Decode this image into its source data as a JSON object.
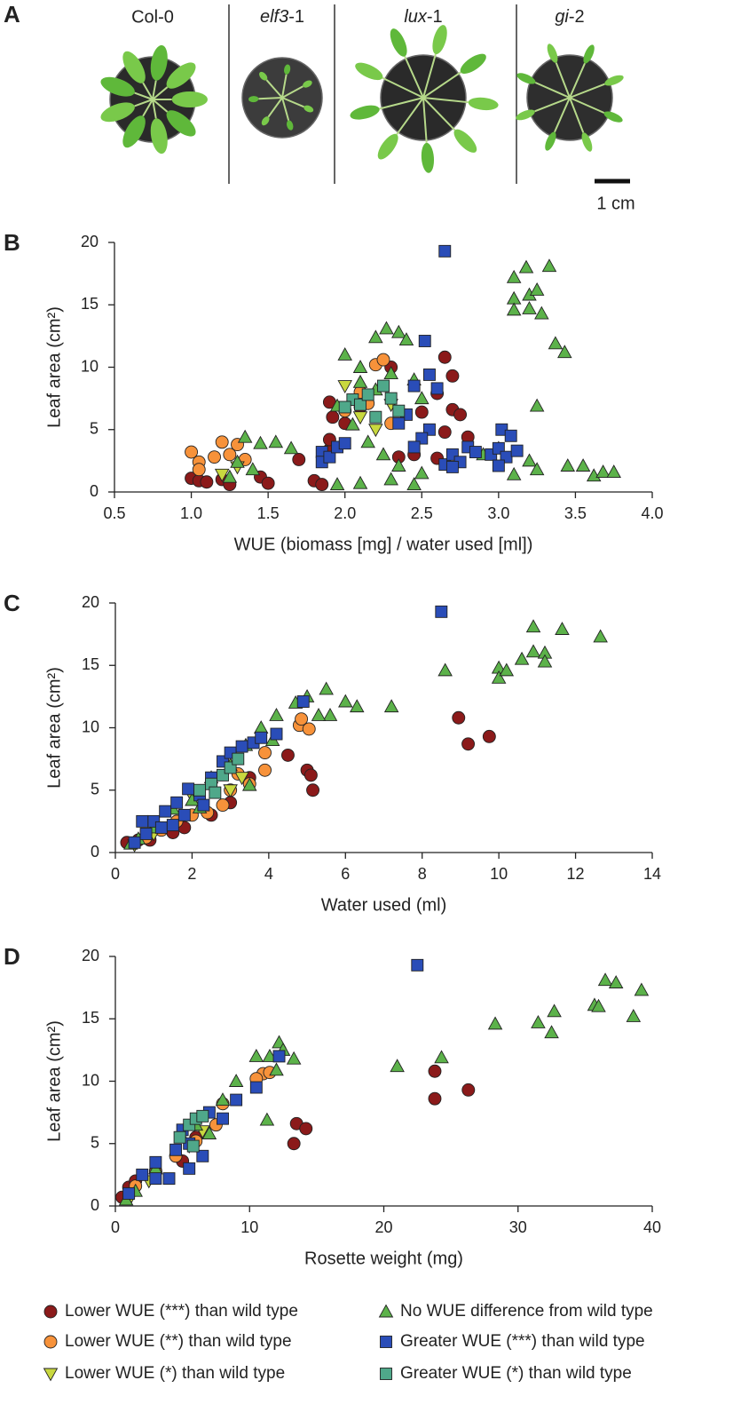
{
  "panel_a": {
    "letter": "A",
    "genotypes": [
      "Col-0",
      "elf3-1",
      "lux-1",
      "gi-2"
    ],
    "scale_bar": "1 cm"
  },
  "legend": [
    {
      "name": "Lower WUE (***) than wild type",
      "color": "#8b1a1a",
      "marker": "circle"
    },
    {
      "name": "Lower WUE (**) than wild type",
      "color": "#f7923a",
      "marker": "circle"
    },
    {
      "name": "Lower WUE (*) than wild type",
      "color": "#c9d83f",
      "marker": "triangle-down"
    },
    {
      "name": "No WUE difference from wild type",
      "color": "#5cb24a",
      "marker": "triangle-up"
    },
    {
      "name": "Greater WUE (***) than wild type",
      "color": "#2a4db8",
      "marker": "square"
    },
    {
      "name": "Greater WUE (*) than wild type",
      "color": "#4fa88a",
      "marker": "square"
    }
  ],
  "chart_data": [
    {
      "type": "scatter",
      "panel": "B",
      "xlabel": "WUE (biomass [mg] / water used [ml])",
      "ylabel": "Leaf area (cm²)",
      "xlim": [
        0.5,
        4.0
      ],
      "ylim": [
        0,
        20
      ],
      "xticks": [
        0.5,
        {
          "value": 1,
          "label": "1.0"
        },
        1.5,
        {
          "value": 2,
          "label": "2.0"
        },
        2.5,
        {
          "value": 3,
          "label": "3.0"
        },
        3.5,
        {
          "value": 4,
          "label": "4.0"
        }
      ],
      "yticks": [
        0,
        5,
        10,
        15,
        20
      ],
      "series": [
        {
          "x": [
            1.0,
            1.05,
            1.1,
            1.2,
            1.25,
            1.45,
            1.5,
            1.7,
            1.8,
            1.85,
            1.9,
            1.92,
            1.9,
            1.9,
            2.3,
            2.35,
            2.5,
            2.6,
            2.65,
            2.7,
            2.7,
            2.75,
            2.6,
            2.65,
            2.8,
            2.45,
            2.0,
            2.1
          ],
          "values": [
            1.1,
            0.9,
            0.8,
            1.0,
            0.6,
            1.2,
            0.7,
            2.6,
            0.9,
            0.6,
            7.2,
            6.0,
            3.4,
            4.2,
            10.0,
            2.8,
            6.4,
            7.9,
            10.8,
            9.3,
            6.6,
            6.2,
            2.7,
            4.8,
            4.4,
            3.0,
            5.5,
            6.8
          ]
        },
        {
          "x": [
            1.0,
            1.05,
            1.05,
            1.15,
            1.2,
            1.25,
            1.3,
            1.35,
            2.2,
            2.25,
            2.1,
            2.15,
            2.0,
            2.3
          ],
          "values": [
            3.2,
            2.4,
            1.8,
            2.8,
            4.0,
            3.0,
            3.8,
            2.6,
            10.2,
            10.6,
            8.0,
            7.1,
            6.5,
            5.5
          ]
        },
        {
          "x": [
            1.3,
            1.2,
            2.1,
            2.2,
            2.3,
            2.0
          ],
          "values": [
            2.0,
            1.4,
            6.0,
            5.0,
            7.0,
            8.5
          ]
        },
        {
          "x": [
            1.35,
            1.45,
            1.55,
            1.65,
            1.3,
            1.4,
            1.25,
            2.0,
            2.1,
            2.2,
            2.27,
            2.35,
            2.4,
            2.1,
            2.2,
            2.3,
            1.95,
            2.05,
            2.15,
            2.25,
            2.35,
            2.3,
            2.1,
            1.95,
            2.45,
            2.5,
            2.5,
            2.45,
            3.1,
            3.18,
            3.33,
            3.1,
            3.2,
            3.25,
            3.1,
            3.2,
            3.28,
            3.37,
            3.43,
            3.25,
            3.2,
            3.25,
            3.1,
            3.45,
            3.55,
            3.62,
            3.68,
            3.75,
            3.0,
            2.9
          ],
          "values": [
            4.4,
            3.9,
            4.0,
            3.5,
            2.4,
            1.8,
            1.2,
            11.0,
            10.0,
            12.4,
            13.1,
            12.8,
            12.2,
            8.8,
            8.2,
            9.5,
            6.9,
            5.4,
            4.0,
            3.0,
            2.1,
            1.0,
            0.7,
            0.6,
            0.6,
            1.5,
            7.5,
            9.0,
            17.2,
            18.0,
            18.1,
            15.5,
            15.8,
            16.2,
            14.6,
            14.7,
            14.3,
            11.9,
            11.2,
            6.9,
            2.5,
            1.8,
            1.4,
            2.1,
            2.1,
            1.3,
            1.6,
            1.6,
            3.5,
            3.0
          ]
        },
        {
          "x": [
            2.65,
            2.52,
            2.55,
            2.45,
            2.6,
            2.4,
            2.35,
            2.55,
            2.5,
            2.45,
            1.85,
            1.85,
            1.9,
            1.95,
            2.0,
            2.65,
            2.7,
            2.75,
            2.8,
            2.85,
            2.95,
            3.0,
            3.02,
            3.08,
            3.05,
            3.12,
            3.0,
            2.7
          ],
          "values": [
            19.3,
            12.1,
            9.4,
            8.5,
            8.3,
            6.2,
            5.5,
            5.0,
            4.3,
            3.6,
            3.2,
            2.4,
            2.8,
            3.6,
            3.9,
            2.2,
            3.0,
            2.4,
            3.6,
            3.2,
            3.0,
            3.5,
            5.0,
            4.5,
            2.8,
            3.3,
            2.1,
            2.0
          ]
        },
        {
          "x": [
            2.05,
            2.1,
            2.15,
            2.2,
            2.0,
            2.25,
            2.3,
            2.35
          ],
          "values": [
            7.4,
            7.0,
            7.8,
            6.0,
            6.8,
            8.5,
            7.5,
            6.5
          ]
        }
      ]
    },
    {
      "type": "scatter",
      "panel": "C",
      "xlabel": "Water used (ml)",
      "ylabel": "Leaf area (cm²)",
      "xlim": [
        0,
        14
      ],
      "ylim": [
        0,
        20
      ],
      "xticks": [
        0,
        2,
        4,
        6,
        8,
        10,
        12,
        14
      ],
      "yticks": [
        0,
        5,
        10,
        15,
        20
      ],
      "series": [
        {
          "x": [
            0.3,
            0.6,
            0.9,
            1.5,
            1.8,
            2.5,
            3.0,
            5.0,
            5.1,
            5.15,
            8.95,
            9.2,
            9.75,
            3.5,
            4.5
          ],
          "values": [
            0.8,
            1.0,
            1.0,
            1.6,
            2.0,
            3.0,
            4.0,
            6.6,
            6.2,
            5.0,
            10.8,
            8.7,
            9.3,
            6.0,
            7.8
          ]
        },
        {
          "x": [
            0.8,
            1.2,
            1.6,
            2.0,
            2.4,
            2.8,
            3.0,
            3.5,
            3.9,
            3.9,
            4.8,
            4.85,
            5.05,
            3.2
          ],
          "values": [
            1.2,
            1.8,
            2.5,
            3.0,
            3.2,
            3.8,
            5.0,
            5.5,
            6.6,
            8.0,
            10.2,
            10.7,
            9.9,
            6.3
          ]
        },
        {
          "x": [
            0.5,
            1.0,
            2.0,
            3.0,
            3.3
          ],
          "values": [
            0.6,
            1.5,
            4.5,
            5.0,
            6.0
          ]
        },
        {
          "x": [
            0.4,
            0.6,
            1.0,
            1.5,
            2.0,
            2.5,
            3.0,
            3.4,
            3.8,
            4.2,
            4.7,
            5.0,
            5.5,
            5.6,
            6.0,
            6.3,
            7.2,
            5.3,
            8.6,
            10.0,
            10.0,
            10.2,
            10.9,
            11.65,
            12.65,
            10.9,
            11.2,
            11.2,
            10.6,
            3.5,
            2.2,
            4.1
          ],
          "values": [
            0.7,
            1.1,
            2.0,
            3.5,
            4.2,
            6.0,
            7.0,
            8.6,
            10.0,
            11.0,
            12.0,
            12.5,
            13.1,
            11.0,
            12.1,
            11.7,
            11.7,
            11.0,
            14.6,
            14.8,
            14.0,
            14.6,
            18.1,
            17.9,
            17.3,
            16.1,
            16.0,
            15.3,
            15.5,
            5.4,
            3.6,
            9.0
          ]
        },
        {
          "x": [
            8.5,
            0.5,
            0.8,
            1.0,
            1.2,
            1.3,
            1.6,
            1.8,
            1.9,
            2.2,
            2.5,
            2.8,
            3.0,
            3.3,
            3.6,
            3.8,
            4.2,
            4.9,
            1.5,
            2.3,
            0.7
          ],
          "values": [
            19.3,
            0.8,
            1.5,
            2.5,
            2.0,
            3.3,
            4.0,
            3.0,
            5.1,
            4.6,
            6.0,
            7.3,
            8.0,
            8.5,
            8.8,
            9.2,
            9.5,
            12.1,
            2.2,
            3.8,
            2.5
          ]
        },
        {
          "x": [
            2.2,
            2.5,
            2.6,
            2.8,
            3.0,
            3.2
          ],
          "values": [
            5.0,
            5.5,
            4.8,
            6.2,
            6.8,
            7.5
          ]
        }
      ]
    },
    {
      "type": "scatter",
      "panel": "D",
      "xlabel": "Rosette weight (mg)",
      "ylabel": "Leaf area (cm²)",
      "xlim": [
        0,
        40
      ],
      "ylim": [
        0,
        20
      ],
      "xticks": [
        0,
        10,
        20,
        30,
        40
      ],
      "yticks": [
        0,
        5,
        10,
        15,
        20
      ],
      "series": [
        {
          "x": [
            0.5,
            1.0,
            1.5,
            3.0,
            5.0,
            13.5,
            14.2,
            13.3,
            23.8,
            23.8,
            26.3,
            6.0
          ],
          "values": [
            0.7,
            1.5,
            2.0,
            2.8,
            3.6,
            6.6,
            6.2,
            5.0,
            10.8,
            8.6,
            9.3,
            5.5
          ]
        },
        {
          "x": [
            1.5,
            3.0,
            4.5,
            6.0,
            7.5,
            8.0,
            11.0,
            11.5,
            10.5
          ],
          "values": [
            1.6,
            2.7,
            4.0,
            5.2,
            6.5,
            8.2,
            10.6,
            10.7,
            10.2
          ]
        },
        {
          "x": [
            1.2,
            2.5,
            5.5,
            6.5
          ],
          "values": [
            0.8,
            2.0,
            4.8,
            6.0
          ]
        },
        {
          "x": [
            0.8,
            1.5,
            3.0,
            5.0,
            6.0,
            8.0,
            9.0,
            10.5,
            11.5,
            12.2,
            12.5,
            13.3,
            12.0,
            11.3,
            21.0,
            24.3,
            28.3,
            31.5,
            32.5,
            32.7,
            35.7,
            36.0,
            36.5,
            37.3,
            38.6,
            39.2,
            7.0
          ],
          "values": [
            0.5,
            1.2,
            3.0,
            5.5,
            6.5,
            8.5,
            10.0,
            12.0,
            12.0,
            13.1,
            12.5,
            11.8,
            10.9,
            6.9,
            11.2,
            11.9,
            14.6,
            14.7,
            13.9,
            15.6,
            16.1,
            16.0,
            18.1,
            17.9,
            15.2,
            17.3,
            5.8
          ]
        },
        {
          "x": [
            22.5,
            1.0,
            2.0,
            3.0,
            4.0,
            4.5,
            5.0,
            5.5,
            6.5,
            7.0,
            8.0,
            9.0,
            10.5,
            12.2,
            5.5,
            3.0
          ],
          "values": [
            19.3,
            1.0,
            2.5,
            3.5,
            2.2,
            4.5,
            6.1,
            5.0,
            4.0,
            7.5,
            7.0,
            8.5,
            9.5,
            12.0,
            3.0,
            2.2
          ]
        },
        {
          "x": [
            4.8,
            5.5,
            6.0,
            6.5,
            5.8
          ],
          "values": [
            5.5,
            6.5,
            7.0,
            7.2,
            4.8
          ]
        }
      ]
    }
  ]
}
